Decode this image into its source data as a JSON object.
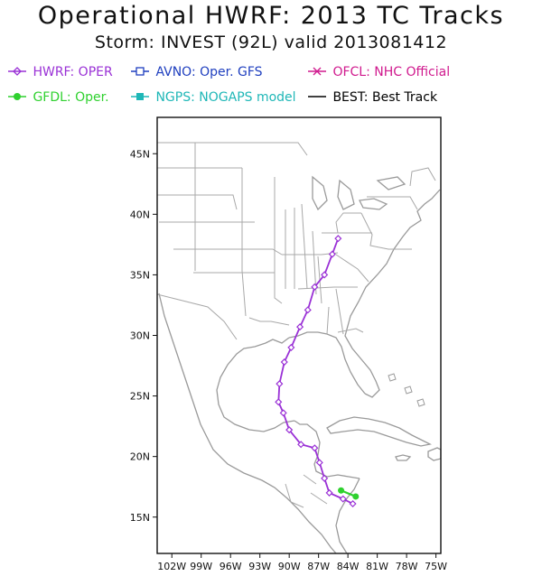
{
  "title": "Operational HWRF: 2013 TC Tracks",
  "subtitle": "Storm: INVEST (92L) valid 2013081412",
  "legend": [
    {
      "label": "HWRF: OPER",
      "color": "#9a31d6",
      "marker": "diamond"
    },
    {
      "label": "AVNO: Oper. GFS",
      "color": "#1f3fbf",
      "marker": "square"
    },
    {
      "label": "OFCL: NHC Official",
      "color": "#d01a8e",
      "marker": "x"
    },
    {
      "label": "GFDL: Oper.",
      "color": "#2fd12f",
      "marker": "dot"
    },
    {
      "label": "NGPS: NOGAPS model",
      "color": "#1fb7b7",
      "marker": "square-filled"
    },
    {
      "label": "BEST: Best Track",
      "color": "#000000",
      "marker": "line"
    }
  ],
  "axes": {
    "lat_labels": [
      "15N",
      "20N",
      "25N",
      "30N",
      "35N",
      "40N",
      "45N"
    ],
    "lon_labels": [
      "102W",
      "99W",
      "96W",
      "93W",
      "90W",
      "87W",
      "84W",
      "81W",
      "78W",
      "75W"
    ],
    "lat_range": [
      12,
      48
    ],
    "lon_range": [
      -103.5,
      -74.5
    ]
  },
  "tracks": {
    "hwrf": [
      [
        -83.5,
        16.1
      ],
      [
        -84.5,
        16.5
      ],
      [
        -85.9,
        17.0
      ],
      [
        -86.4,
        18.2
      ],
      [
        -86.9,
        19.5
      ],
      [
        -87.4,
        20.7
      ],
      [
        -88.8,
        21.0
      ],
      [
        -90.0,
        22.2
      ],
      [
        -90.6,
        23.6
      ],
      [
        -91.1,
        24.5
      ],
      [
        -91.0,
        26.0
      ],
      [
        -90.5,
        27.8
      ],
      [
        -89.8,
        29.0
      ],
      [
        -88.9,
        30.7
      ],
      [
        -88.1,
        32.1
      ],
      [
        -87.4,
        34.0
      ],
      [
        -86.4,
        35.0
      ],
      [
        -85.6,
        36.7
      ],
      [
        -85.0,
        38.0
      ]
    ],
    "gfdl": [
      [
        -83.2,
        16.7
      ],
      [
        -84.7,
        17.2
      ]
    ]
  }
}
